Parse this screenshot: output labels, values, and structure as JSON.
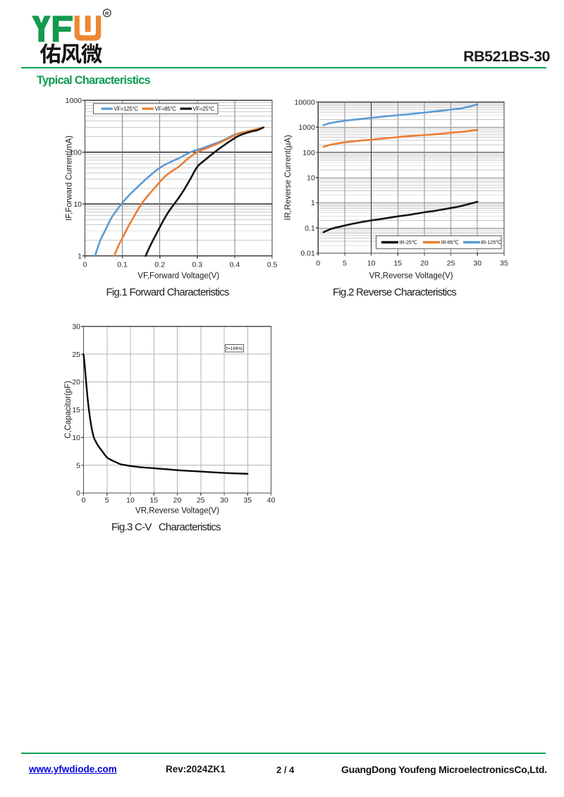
{
  "header": {
    "logo": {
      "latin": "YFW",
      "registered_mark": "R",
      "company_zh": "佑风微",
      "green": "#149A4F",
      "orange": "#ED8733"
    },
    "part_number": "RB521BS-30",
    "rule_color": "#0CA257"
  },
  "section_title": "Typical Characteristics",
  "section_title_color": "#0D9B4F",
  "figures": [
    {
      "id": "fig1",
      "caption": "Fig.1 Forward Characteristics",
      "type": "line",
      "xlabel": "VF,Forward Voltage(V)",
      "ylabel": "IF,Forward Current(mA)",
      "xscale": "linear",
      "yscale": "log",
      "xlim": [
        0,
        0.5
      ],
      "ylim": [
        1,
        1000
      ],
      "xticks": [
        0,
        0.1,
        0.2,
        0.3,
        0.4,
        0.5
      ],
      "xtick_labels": [
        "0",
        "0.1",
        "0.2",
        "0.3",
        "0.4",
        "0.5"
      ],
      "ytick_labels": [
        "1000",
        "100",
        "10",
        "1"
      ],
      "yticks": [
        1000,
        100,
        10,
        1
      ],
      "xgrid": [
        0.1,
        0.2,
        0.3,
        0.4
      ],
      "xgrid_dark": [],
      "ygrid_dark": [
        10,
        100
      ],
      "legend_position": "top",
      "series": [
        {
          "name": "VF=125°C",
          "color": "#5B9BD5",
          "points": [
            [
              0.027,
              1
            ],
            [
              0.04,
              1.9
            ],
            [
              0.055,
              3.2
            ],
            [
              0.07,
              5.3
            ],
            [
              0.085,
              7.6
            ],
            [
              0.097,
              10
            ],
            [
              0.115,
              14
            ],
            [
              0.135,
              19.5
            ],
            [
              0.158,
              28
            ],
            [
              0.175,
              36
            ],
            [
              0.2,
              50
            ],
            [
              0.225,
              63
            ],
            [
              0.255,
              79
            ],
            [
              0.282,
              100
            ],
            [
              0.31,
              117
            ],
            [
              0.34,
              140
            ],
            [
              0.37,
              170
            ],
            [
              0.4,
              218
            ],
            [
              0.43,
              248
            ],
            [
              0.455,
              272
            ],
            [
              0.477,
              300
            ]
          ]
        },
        {
          "name": "VF=85°C",
          "color": "#ED7D31",
          "points": [
            [
              0.078,
              1
            ],
            [
              0.09,
              1.6
            ],
            [
              0.1,
              2.2
            ],
            [
              0.115,
              3.6
            ],
            [
              0.13,
              5.6
            ],
            [
              0.151,
              10
            ],
            [
              0.17,
              15
            ],
            [
              0.19,
              22
            ],
            [
              0.21,
              32
            ],
            [
              0.23,
              42
            ],
            [
              0.25,
              52
            ],
            [
              0.275,
              75
            ],
            [
              0.3,
              100
            ],
            [
              0.33,
              123
            ],
            [
              0.36,
              152
            ],
            [
              0.39,
              195
            ],
            [
              0.41,
              228
            ],
            [
              0.44,
              258
            ],
            [
              0.477,
              300
            ]
          ]
        },
        {
          "name": "VF=25°C",
          "color": "#141414",
          "points": [
            [
              0.162,
              1
            ],
            [
              0.175,
              1.6
            ],
            [
              0.19,
              2.6
            ],
            [
              0.205,
              4.2
            ],
            [
              0.22,
              6.5
            ],
            [
              0.235,
              9.3
            ],
            [
              0.25,
              13
            ],
            [
              0.265,
              19
            ],
            [
              0.28,
              29
            ],
            [
              0.3,
              52
            ],
            [
              0.32,
              70
            ],
            [
              0.35,
              105
            ],
            [
              0.38,
              150
            ],
            [
              0.41,
              205
            ],
            [
              0.44,
              245
            ],
            [
              0.46,
              265
            ],
            [
              0.477,
              300
            ]
          ]
        }
      ]
    },
    {
      "id": "fig2",
      "caption": "Fig.2 Reverse Characteristics",
      "type": "line",
      "xlabel": "VR,Reverse Voltage(V)",
      "ylabel": "IR,Reverse Current(μA)",
      "xscale": "linear",
      "yscale": "log",
      "xlim": [
        0,
        35
      ],
      "ylim": [
        0.01,
        10000
      ],
      "xticks": [
        0,
        5,
        10,
        15,
        20,
        25,
        30,
        35
      ],
      "xtick_labels": [
        "0",
        "5",
        "10",
        "15",
        "20",
        "25",
        "30",
        "35"
      ],
      "ytick_labels": [
        "10000",
        "1000",
        "100",
        "10",
        "1",
        "0.1",
        "0.01"
      ],
      "yticks": [
        10000,
        1000,
        100,
        10,
        1,
        0.1,
        0.01
      ],
      "xgrid": [
        5,
        10,
        15,
        20,
        25,
        30
      ],
      "xgrid_dark": [
        10
      ],
      "ygrid_dark": [
        100
      ],
      "legend_position": "bottom",
      "series": [
        {
          "name": "IR-25℃",
          "color": "#141414",
          "points": [
            [
              1,
              0.068
            ],
            [
              2,
              0.085
            ],
            [
              3,
              0.1
            ],
            [
              5,
              0.125
            ],
            [
              7,
              0.155
            ],
            [
              10,
              0.2
            ],
            [
              12,
              0.23
            ],
            [
              15,
              0.29
            ],
            [
              17,
              0.33
            ],
            [
              20,
              0.42
            ],
            [
              22,
              0.48
            ],
            [
              25,
              0.62
            ],
            [
              27,
              0.75
            ],
            [
              30,
              1.1
            ]
          ]
        },
        {
          "name": "IR-85℃",
          "color": "#ED7D31",
          "points": [
            [
              1,
              165
            ],
            [
              2,
              195
            ],
            [
              3,
              215
            ],
            [
              5,
              250
            ],
            [
              7,
              280
            ],
            [
              10,
              320
            ],
            [
              12,
              350
            ],
            [
              15,
              405
            ],
            [
              17,
              440
            ],
            [
              20,
              490
            ],
            [
              22,
              520
            ],
            [
              25,
              600
            ],
            [
              27,
              650
            ],
            [
              30,
              780
            ]
          ]
        },
        {
          "name": "IR-125℃",
          "color": "#5B9BD5",
          "points": [
            [
              1,
              1200
            ],
            [
              2,
              1400
            ],
            [
              3,
              1550
            ],
            [
              5,
              1800
            ],
            [
              7,
              2000
            ],
            [
              10,
              2350
            ],
            [
              12,
              2600
            ],
            [
              15,
              3000
            ],
            [
              17,
              3250
            ],
            [
              20,
              3800
            ],
            [
              22,
              4200
            ],
            [
              25,
              5000
            ],
            [
              27,
              5600
            ],
            [
              30,
              8000
            ]
          ]
        }
      ]
    },
    {
      "id": "fig3",
      "caption": "Fig.3 C-V   Characteristics",
      "type": "line",
      "xlabel": "VR,Reverse Voltage(V)",
      "ylabel": "C,Capacitor(pF)",
      "xscale": "linear",
      "yscale": "linear",
      "xlim": [
        0,
        40
      ],
      "ylim": [
        0,
        30
      ],
      "xticks": [
        0,
        5,
        10,
        15,
        20,
        25,
        30,
        35,
        40
      ],
      "xtick_labels": [
        "0",
        "5",
        "10",
        "15",
        "20",
        "25",
        "30",
        "35",
        "40"
      ],
      "ytick_labels": [
        "30",
        "25",
        "20",
        "15",
        "10",
        "5",
        "0"
      ],
      "yticks": [
        30,
        25,
        20,
        15,
        10,
        5,
        0
      ],
      "ygrid": [
        5,
        10,
        15,
        20,
        25
      ],
      "xgrid": [
        5,
        10,
        15,
        20,
        25,
        30,
        35
      ],
      "xgrid_dark": [],
      "ygrid_dark": [],
      "annotation": "f=1MHz",
      "series": [
        {
          "name": "C",
          "color": "#0a0a0a",
          "points": [
            [
              0,
              25
            ],
            [
              0.3,
              22.5
            ],
            [
              0.6,
              19.5
            ],
            [
              1,
              16
            ],
            [
              1.4,
              13.4
            ],
            [
              1.8,
              11.4
            ],
            [
              2.2,
              10
            ],
            [
              2.7,
              9.1
            ],
            [
              3.2,
              8.4
            ],
            [
              4,
              7.5
            ],
            [
              5,
              6.4
            ],
            [
              6,
              5.9
            ],
            [
              7,
              5.5
            ],
            [
              8,
              5.15
            ],
            [
              9,
              5.0
            ],
            [
              10,
              4.85
            ],
            [
              12,
              4.65
            ],
            [
              15,
              4.45
            ],
            [
              18,
              4.25
            ],
            [
              20,
              4.1
            ],
            [
              23,
              3.95
            ],
            [
              25,
              3.85
            ],
            [
              28,
              3.7
            ],
            [
              30,
              3.6
            ],
            [
              33,
              3.5
            ],
            [
              35,
              3.45
            ]
          ]
        }
      ]
    }
  ],
  "footer": {
    "website": "www.yfwdiode.com",
    "revision": "Rev:2024ZK1",
    "page_indicator": "2 / 4",
    "company": "GuangDong Youfeng MicroelectronicsCo,Ltd.",
    "rule_color": "#0CA257",
    "link_color": "#0000DD"
  }
}
